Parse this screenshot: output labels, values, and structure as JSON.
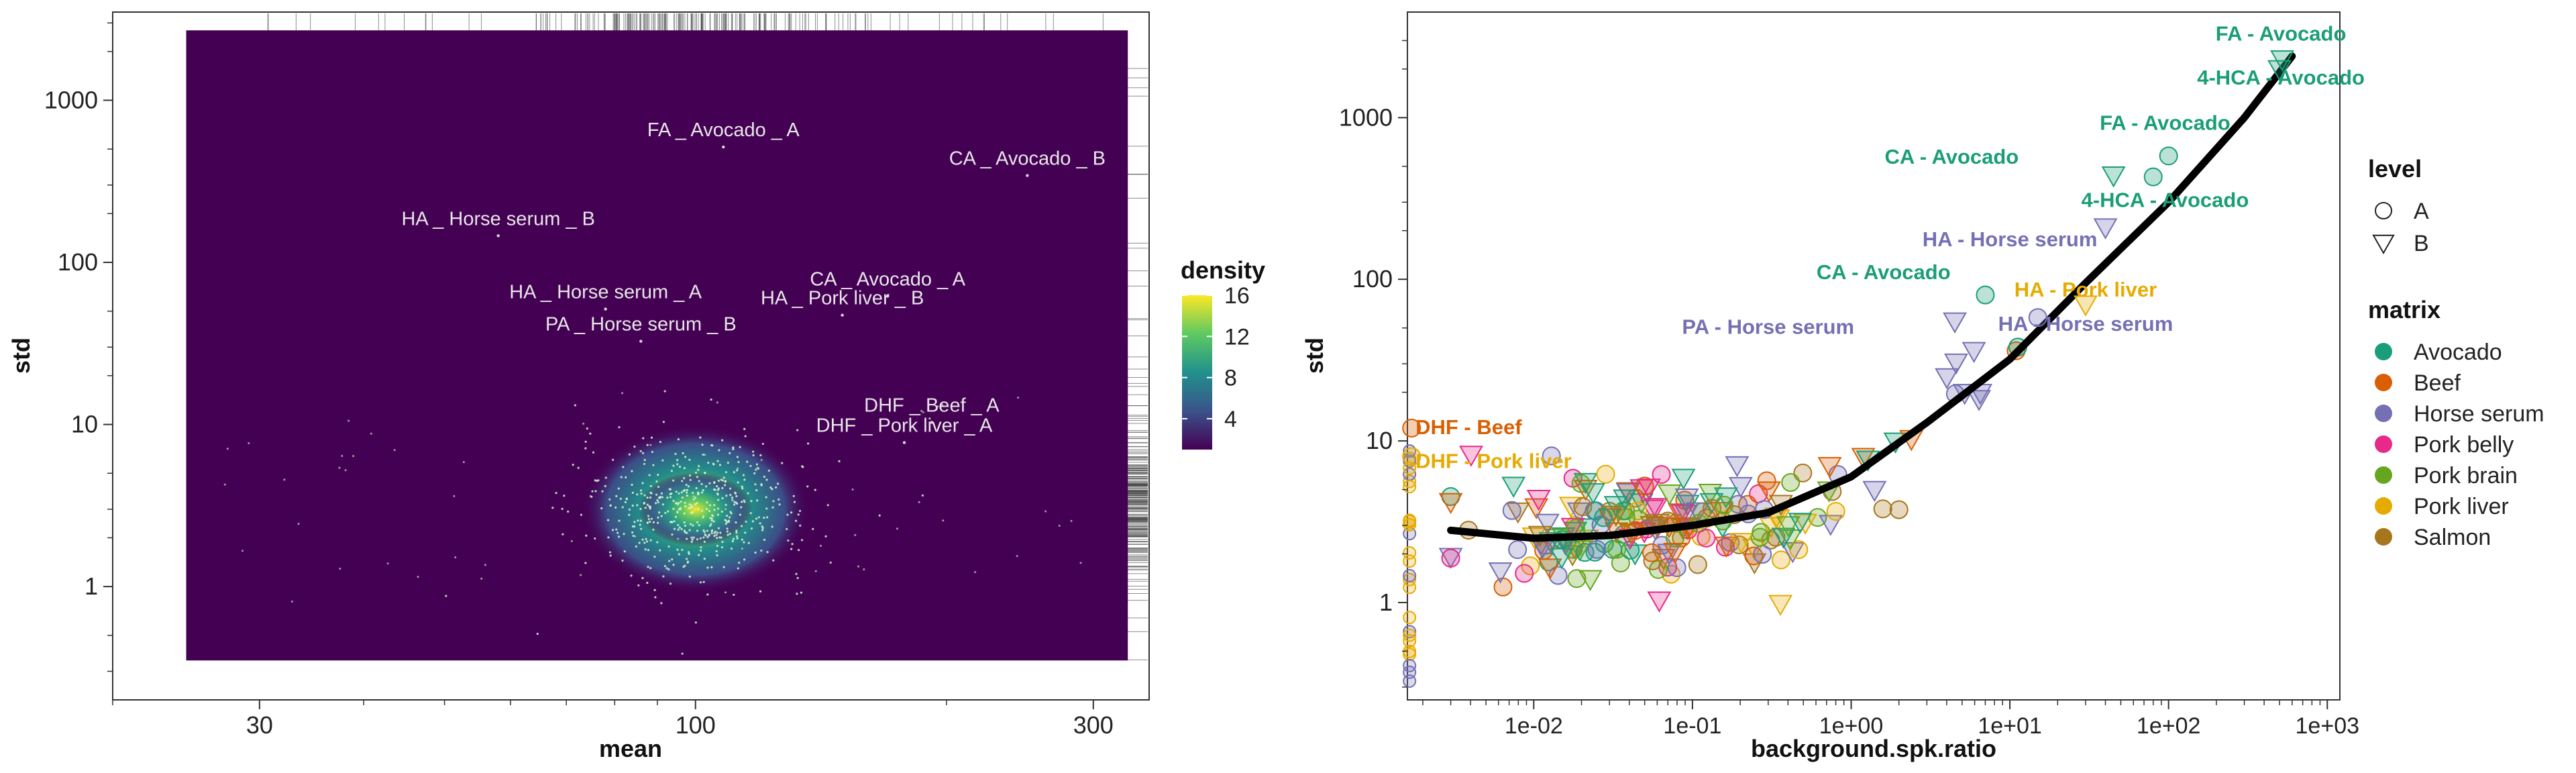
{
  "chart_data": [
    {
      "type": "heatmap",
      "xlabel": "mean",
      "ylabel": "std",
      "x_scale": "log10",
      "y_scale": "log10",
      "xlim": [
        20,
        350
      ],
      "ylim": [
        0.2,
        3500
      ],
      "x_ticks": [
        {
          "value": 30,
          "label": "30"
        },
        {
          "value": 100,
          "label": "100"
        },
        {
          "value": 300,
          "label": "300"
        }
      ],
      "y_ticks": [
        {
          "value": 1,
          "label": "1"
        },
        {
          "value": 10,
          "label": "10"
        },
        {
          "value": 100,
          "label": "100"
        },
        {
          "value": 1000,
          "label": "1000"
        }
      ],
      "legend": {
        "title": "density",
        "ticks": [
          "4",
          "8",
          "12",
          "16"
        ],
        "range": [
          1,
          16
        ],
        "placement": "right"
      },
      "density_peak": {
        "mean": 100,
        "std": 3,
        "value": 16
      },
      "annotations": [
        {
          "text": "FA _ Avocado _ A",
          "mean": 108,
          "std": 600
        },
        {
          "text": "CA _ Avocado _ B",
          "mean": 250,
          "std": 400
        },
        {
          "text": "HA _ Horse serum _ B",
          "mean": 58,
          "std": 170
        },
        {
          "text": "CA _ Avocado _ A",
          "mean": 170,
          "std": 72
        },
        {
          "text": "HA _ Horse serum _ A",
          "mean": 78,
          "std": 60
        },
        {
          "text": "HA _ Pork liver _ B",
          "mean": 150,
          "std": 55
        },
        {
          "text": "PA _ Horse serum _ B",
          "mean": 86,
          "std": 38
        },
        {
          "text": "DHF _ Beef _ A",
          "mean": 192,
          "std": 12
        },
        {
          "text": "DHF _ Pork liver _ A",
          "mean": 178,
          "std": 9
        }
      ]
    },
    {
      "type": "scatter",
      "xlabel": "background.spk.ratio",
      "ylabel": "std",
      "x_scale": "log10",
      "y_scale": "log10",
      "xlim": [
        0.0016,
        1200
      ],
      "ylim": [
        0.25,
        4500
      ],
      "x_ticks": [
        {
          "value": 0.01,
          "label": "1e-02"
        },
        {
          "value": 0.1,
          "label": "1e-01"
        },
        {
          "value": 1,
          "label": "1e+00"
        },
        {
          "value": 10,
          "label": "1e+01"
        },
        {
          "value": 100,
          "label": "1e+02"
        },
        {
          "value": 1000,
          "label": "1e+03"
        }
      ],
      "y_ticks": [
        {
          "value": 1,
          "label": "1"
        },
        {
          "value": 10,
          "label": "10"
        },
        {
          "value": 100,
          "label": "100"
        },
        {
          "value": 1000,
          "label": "1000"
        }
      ],
      "legend_level": {
        "title": "level",
        "items": [
          {
            "label": "A",
            "shape": "circle"
          },
          {
            "label": "B",
            "shape": "triangle"
          }
        ],
        "placement": "right"
      },
      "legend_matrix": {
        "title": "matrix",
        "placement": "right",
        "items": [
          {
            "label": "Avocado",
            "color": "#1b9e77"
          },
          {
            "label": "Beef",
            "color": "#d95f02"
          },
          {
            "label": "Horse serum",
            "color": "#7570b3"
          },
          {
            "label": "Pork belly",
            "color": "#e7298a"
          },
          {
            "label": "Pork brain",
            "color": "#66a61e"
          },
          {
            "label": "Pork liver",
            "color": "#e6ab02"
          },
          {
            "label": "Salmon",
            "color": "#a6761d"
          }
        ]
      },
      "trend_line": [
        [
          0.003,
          2.8
        ],
        [
          0.01,
          2.5
        ],
        [
          0.03,
          2.6
        ],
        [
          0.1,
          3.0
        ],
        [
          0.3,
          3.6
        ],
        [
          1,
          6
        ],
        [
          3,
          13
        ],
        [
          10,
          32
        ],
        [
          30,
          95
        ],
        [
          100,
          300
        ],
        [
          300,
          1000
        ],
        [
          600,
          2400
        ]
      ],
      "labeled_points": [
        {
          "text": "FA - Avocado",
          "x": 520,
          "y": 2300,
          "level": "B",
          "matrix": "Avocado",
          "label_x": 510,
          "label_y": 3000
        },
        {
          "text": "4-HCA - Avocado",
          "x": 500,
          "y": 2000,
          "level": "B",
          "matrix": "Avocado",
          "label_x": 510,
          "label_y": 1600
        },
        {
          "text": "FA - Avocado",
          "x": 100,
          "y": 580,
          "level": "A",
          "matrix": "Avocado",
          "label_x": 95,
          "label_y": 840
        },
        {
          "text": "CA - Avocado",
          "x": 45,
          "y": 440,
          "level": "B",
          "matrix": "Avocado",
          "label_x": 4.3,
          "label_y": 520
        },
        {
          "text": "4-HCA - Avocado",
          "x": 80,
          "y": 430,
          "level": "A",
          "matrix": "Avocado",
          "label_x": 95,
          "label_y": 280
        },
        {
          "text": "HA - Horse serum",
          "x": 40,
          "y": 210,
          "level": "B",
          "matrix": "Horse serum",
          "label_x": 10,
          "label_y": 160
        },
        {
          "text": "CA - Avocado",
          "x": 7,
          "y": 80,
          "level": "A",
          "matrix": "Avocado",
          "label_x": 1.6,
          "label_y": 100
        },
        {
          "text": "HA - Pork liver",
          "x": 30,
          "y": 70,
          "level": "B",
          "matrix": "Pork liver",
          "label_x": 30,
          "label_y": 78
        },
        {
          "text": "PA - Horse serum",
          "x": 4.5,
          "y": 55,
          "level": "B",
          "matrix": "Horse serum",
          "label_x": 0.3,
          "label_y": 46
        },
        {
          "text": "HA - Horse serum",
          "x": 15,
          "y": 58,
          "level": "A",
          "matrix": "Horse serum",
          "label_x": 30,
          "label_y": 48
        },
        {
          "text": "DHF - Beef",
          "x": 0.0017,
          "y": 12,
          "level": "A",
          "matrix": "Beef",
          "label_x": 0.0018,
          "label_y": 11
        },
        {
          "text": "DHF - Pork liver",
          "x": 0.0017,
          "y": 8,
          "level": "A",
          "matrix": "Pork liver",
          "label_x": 0.0018,
          "label_y": 6.8
        }
      ]
    }
  ]
}
